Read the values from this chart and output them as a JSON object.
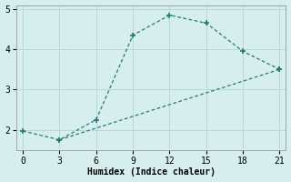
{
  "line1_x": [
    0,
    3,
    6,
    9,
    12,
    15,
    18,
    21
  ],
  "line1_y": [
    1.97,
    1.75,
    2.25,
    4.35,
    4.85,
    4.65,
    3.95,
    3.5
  ],
  "line1_markers_x": [
    0,
    3,
    6,
    9,
    12,
    15,
    18,
    21
  ],
  "line1_markers_y": [
    1.97,
    1.75,
    2.25,
    4.35,
    4.85,
    4.65,
    3.95,
    3.5
  ],
  "line2_x": [
    3,
    21
  ],
  "line2_y": [
    1.75,
    3.5
  ],
  "line_color": "#2a7a6a",
  "marker": "+",
  "marker_size": 4,
  "marker_linewidth": 1.2,
  "linewidth": 0.9,
  "xlabel": "Humidex (Indice chaleur)",
  "xlim": [
    -0.5,
    21.5
  ],
  "ylim": [
    1.5,
    5.1
  ],
  "xticks": [
    0,
    3,
    6,
    9,
    12,
    15,
    18,
    21
  ],
  "yticks": [
    2,
    3,
    4,
    5
  ],
  "background_color": "#d6eeee",
  "grid_color": "#b8d8d8",
  "font_family": "monospace",
  "xlabel_fontsize": 7,
  "tick_fontsize": 7,
  "xlabel_fontweight": "bold"
}
